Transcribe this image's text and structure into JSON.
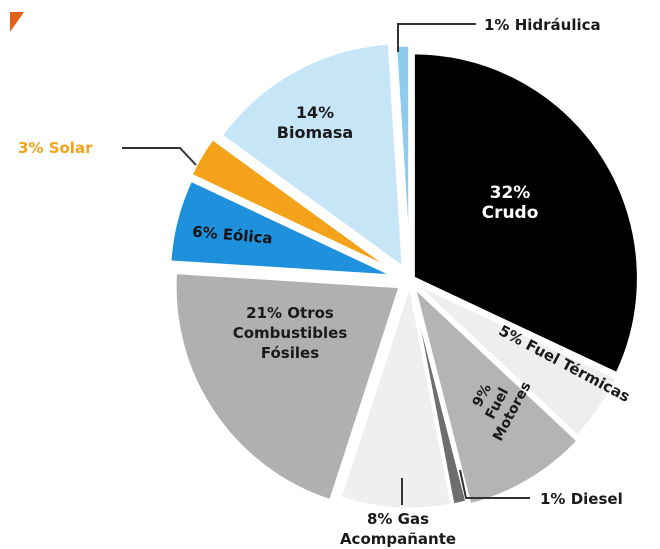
{
  "chart_data": {
    "type": "pie",
    "title": "",
    "slices": [
      {
        "label_pct": "32%",
        "label_name": "Crudo",
        "value": 32,
        "color": "#000000",
        "text_color": "#ffffff"
      },
      {
        "label_pct": "5%",
        "label_name": "Fuel Térmicas",
        "value": 5,
        "color": "#eeeeee",
        "text_color": "#1a1a1a"
      },
      {
        "label_pct": "9%",
        "label_name": "Fuel Motores",
        "value": 9,
        "color": "#b4b4b4",
        "text_color": "#1a1a1a"
      },
      {
        "label_pct": "1%",
        "label_name": "Diesel",
        "value": 1,
        "color": "#6e6e6e",
        "text_color": "#1a1a1a"
      },
      {
        "label_pct": "8%",
        "label_name": "Gas Acompañante",
        "value": 8,
        "color": "#efefef",
        "text_color": "#1a1a1a"
      },
      {
        "label_pct": "21%",
        "label_name": "Otros Combustibles Fósiles",
        "value": 21,
        "color": "#b0b0b0",
        "text_color": "#1a1a1a"
      },
      {
        "label_pct": "6%",
        "label_name": "Eólica",
        "value": 6,
        "color": "#1e90dc",
        "text_color": "#111111"
      },
      {
        "label_pct": "3%",
        "label_name": "Solar",
        "value": 3,
        "color": "#f5a21b",
        "text_color": "#f5a21b"
      },
      {
        "label_pct": "14%",
        "label_name": "Biomasa",
        "value": 14,
        "color": "#c6e6f8",
        "text_color": "#1a1a1a"
      },
      {
        "label_pct": "1%",
        "label_name": "Hidráulica",
        "value": 1,
        "color": "#8ecbee",
        "text_color": "#1a1a1a"
      }
    ],
    "legend": "none",
    "accent_mark_color": "#e2611c"
  }
}
